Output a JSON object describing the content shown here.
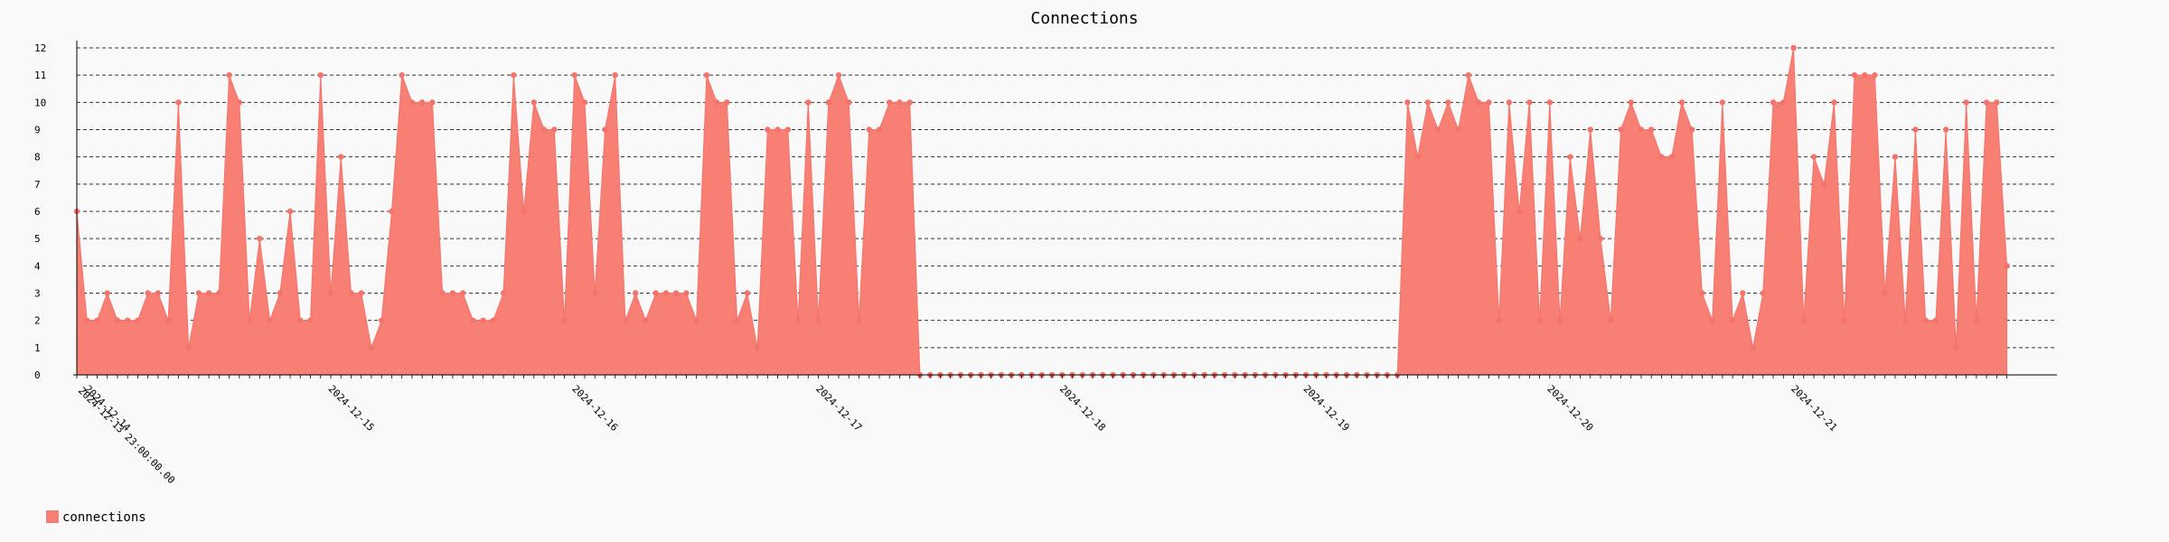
{
  "chart_data": {
    "type": "area",
    "title": "Connections",
    "xlabel": "",
    "ylabel": "",
    "ylim": [
      0,
      12
    ],
    "grid": true,
    "legend_position": "bottom-left",
    "color": "#f4736b",
    "fill_color": "#f87f73",
    "y_ticks": [
      "0",
      "1",
      "2",
      "3",
      "4",
      "5",
      "6",
      "7",
      "8",
      "9",
      "10",
      "11",
      "12"
    ],
    "x_tick_labels": [
      {
        "index": 0,
        "label": "2024-12-14"
      },
      {
        "index": 24,
        "label": "2024-12-15"
      },
      {
        "index": 48,
        "label": "2024-12-16"
      },
      {
        "index": 72,
        "label": "2024-12-17"
      },
      {
        "index": 96,
        "label": "2024-12-18"
      },
      {
        "index": 120,
        "label": "2024-12-19"
      },
      {
        "index": 144,
        "label": "2024-12-20"
      },
      {
        "index": 168,
        "label": "2024-12-21"
      }
    ],
    "first_x_label": "2024-12-13 23:00:00.00",
    "series": [
      {
        "name": "connections",
        "values": [
          6,
          2,
          2,
          3,
          2,
          2,
          2,
          3,
          3,
          2,
          10,
          1,
          3,
          3,
          3,
          11,
          10,
          2,
          5,
          2,
          3,
          6,
          2,
          2,
          11,
          3,
          8,
          3,
          3,
          1,
          2,
          6,
          11,
          10,
          10,
          10,
          3,
          3,
          3,
          2,
          2,
          2,
          3,
          11,
          6,
          10,
          9,
          9,
          2,
          11,
          10,
          3,
          9,
          11,
          2,
          3,
          2,
          3,
          3,
          3,
          3,
          2,
          11,
          10,
          10,
          2,
          3,
          1,
          9,
          9,
          9,
          2,
          10,
          2,
          10,
          11,
          10,
          2,
          9,
          9,
          10,
          10,
          10,
          0,
          0,
          0,
          0,
          0,
          0,
          0,
          0,
          0,
          0,
          0,
          0,
          0,
          0,
          0,
          0,
          0,
          0,
          0,
          0,
          0,
          0,
          0,
          0,
          0,
          0,
          0,
          0,
          0,
          0,
          0,
          0,
          0,
          0,
          0,
          0,
          0,
          0,
          0,
          0,
          0,
          0,
          0,
          0,
          0,
          0,
          0,
          0,
          10,
          8,
          10,
          9,
          10,
          9,
          11,
          10,
          10,
          2,
          10,
          6,
          10,
          2,
          10,
          2,
          8,
          5,
          9,
          5,
          2,
          9,
          10,
          9,
          9,
          8,
          8,
          10,
          9,
          3,
          2,
          10,
          2,
          3,
          1,
          3,
          10,
          10,
          12,
          2,
          8,
          7,
          10,
          2,
          11,
          11,
          11,
          3,
          8,
          2,
          9,
          2,
          2,
          9,
          1,
          10,
          2,
          10,
          10,
          4
        ]
      }
    ]
  }
}
